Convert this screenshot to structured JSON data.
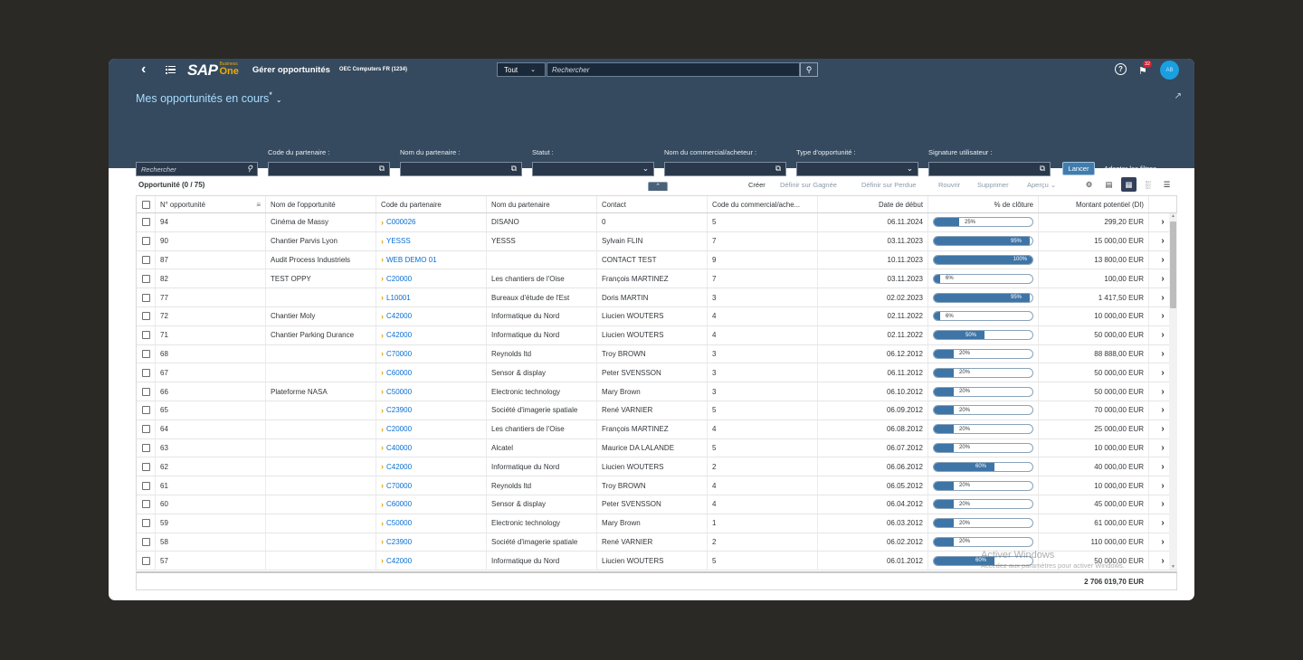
{
  "shell": {
    "back_icon": "chevron-left-icon",
    "logo_sap": "SAP",
    "logo_business": "Business",
    "logo_one": "One",
    "app_title": "Gérer opportunités",
    "company": "OEC Computers FR (1234)",
    "search_scope": "Tout",
    "search_placeholder": "Rechercher",
    "help_glyph": "?",
    "notification_count": "32",
    "avatar_initials": "AB"
  },
  "header": {
    "variant_title": "Mes opportunités en cours",
    "variant_modified": "*",
    "search_placeholder": "Rechercher",
    "filters": [
      {
        "label": "Code du partenaire :"
      },
      {
        "label": "Nom du partenaire :"
      },
      {
        "label": "Statut :"
      },
      {
        "label": "Nom du commercial/acheteur :"
      },
      {
        "label": "Type d'opportunité :"
      },
      {
        "label": "Signature utilisateur :"
      }
    ],
    "go_label": "Lancer",
    "adapt_label": "Adapter les filtres"
  },
  "toolbar": {
    "title": "Opportunité (0 / 75)",
    "create": "Créer",
    "set_won": "Définir sur Gagnée",
    "set_lost": "Définir sur Perdue",
    "reopen": "Rouvrir",
    "delete": "Supprimer",
    "preview": "Aperçu"
  },
  "columns": [
    "N° opportunité",
    "Nom de l'opportunité",
    "Code du partenaire",
    "Nom du partenaire",
    "Contact",
    "Code du commercial/ache...",
    "Date de début",
    "% de clôture",
    "Montant potentiel (DI)"
  ],
  "rows": [
    {
      "num": "94",
      "name": "Cinéma de Massy",
      "code": "C000026",
      "partner": "DISANO",
      "contact": "0",
      "sales": "5",
      "date": "06.11.2024",
      "pct": 25,
      "pct_label": "25%",
      "amount": "299,20 EUR"
    },
    {
      "num": "90",
      "name": "Chantier Parvis Lyon",
      "code": "YESSS",
      "partner": "YESSS",
      "contact": "Sylvain FLIN",
      "sales": "7",
      "date": "03.11.2023",
      "pct": 95,
      "pct_label": "95%",
      "amount": "15 000,00 EUR"
    },
    {
      "num": "87",
      "name": "Audit Process Industriels",
      "code": "WEB DEMO 01",
      "partner": "",
      "contact": "CONTACT TEST",
      "sales": "9",
      "date": "10.11.2023",
      "pct": 100,
      "pct_label": "100%",
      "amount": "13 800,00 EUR"
    },
    {
      "num": "82",
      "name": "TEST OPPY",
      "code": "C20000",
      "partner": "Les chantiers de l'Oise",
      "contact": "François MARTINEZ",
      "sales": "7",
      "date": "03.11.2023",
      "pct": 6,
      "pct_label": "6%",
      "amount": "100,00 EUR"
    },
    {
      "num": "77",
      "name": "",
      "code": "L10001",
      "partner": "Bureaux d'étude de l'Est",
      "contact": "Doris MARTIN",
      "sales": "3",
      "date": "02.02.2023",
      "pct": 95,
      "pct_label": "95%",
      "amount": "1 417,50 EUR"
    },
    {
      "num": "72",
      "name": "Chantier Moly",
      "code": "C42000",
      "partner": "Informatique du Nord",
      "contact": "Liucien WOUTERS",
      "sales": "4",
      "date": "02.11.2022",
      "pct": 6,
      "pct_label": "6%",
      "amount": "10 000,00 EUR"
    },
    {
      "num": "71",
      "name": "Chantier Parking Durance",
      "code": "C42000",
      "partner": "Informatique du Nord",
      "contact": "Liucien WOUTERS",
      "sales": "4",
      "date": "02.11.2022",
      "pct": 50,
      "pct_label": "50%",
      "amount": "50 000,00 EUR"
    },
    {
      "num": "68",
      "name": "",
      "code": "C70000",
      "partner": "Reynolds ltd",
      "contact": "Troy BROWN",
      "sales": "3",
      "date": "06.12.2012",
      "pct": 20,
      "pct_label": "20%",
      "amount": "88 888,00 EUR"
    },
    {
      "num": "67",
      "name": "",
      "code": "C60000",
      "partner": "Sensor & display",
      "contact": "Peter SVENSSON",
      "sales": "3",
      "date": "06.11.2012",
      "pct": 20,
      "pct_label": "20%",
      "amount": "50 000,00 EUR"
    },
    {
      "num": "66",
      "name": "Plateforme NASA",
      "code": "C50000",
      "partner": "Electronic technology",
      "contact": "Mary Brown",
      "sales": "3",
      "date": "06.10.2012",
      "pct": 20,
      "pct_label": "20%",
      "amount": "50 000,00 EUR"
    },
    {
      "num": "65",
      "name": "",
      "code": "C23900",
      "partner": "Société d'imagerie spatiale",
      "contact": "René VARNIER",
      "sales": "5",
      "date": "06.09.2012",
      "pct": 20,
      "pct_label": "20%",
      "amount": "70 000,00 EUR"
    },
    {
      "num": "64",
      "name": "",
      "code": "C20000",
      "partner": "Les chantiers de l'Oise",
      "contact": "François MARTINEZ",
      "sales": "4",
      "date": "06.08.2012",
      "pct": 20,
      "pct_label": "20%",
      "amount": "25 000,00 EUR"
    },
    {
      "num": "63",
      "name": "",
      "code": "C40000",
      "partner": "Alcatel",
      "contact": "Maurice DA LALANDE",
      "sales": "5",
      "date": "06.07.2012",
      "pct": 20,
      "pct_label": "20%",
      "amount": "10 000,00 EUR"
    },
    {
      "num": "62",
      "name": "",
      "code": "C42000",
      "partner": "Informatique du Nord",
      "contact": "Liucien WOUTERS",
      "sales": "2",
      "date": "06.06.2012",
      "pct": 60,
      "pct_label": "60%",
      "amount": "40 000,00 EUR"
    },
    {
      "num": "61",
      "name": "",
      "code": "C70000",
      "partner": "Reynolds ltd",
      "contact": "Troy BROWN",
      "sales": "4",
      "date": "06.05.2012",
      "pct": 20,
      "pct_label": "20%",
      "amount": "10 000,00 EUR"
    },
    {
      "num": "60",
      "name": "",
      "code": "C60000",
      "partner": "Sensor & display",
      "contact": "Peter SVENSSON",
      "sales": "4",
      "date": "06.04.2012",
      "pct": 20,
      "pct_label": "20%",
      "amount": "45 000,00 EUR"
    },
    {
      "num": "59",
      "name": "",
      "code": "C50000",
      "partner": "Electronic technology",
      "contact": "Mary Brown",
      "sales": "1",
      "date": "06.03.2012",
      "pct": 20,
      "pct_label": "20%",
      "amount": "61 000,00 EUR"
    },
    {
      "num": "58",
      "name": "",
      "code": "C23900",
      "partner": "Société d'imagerie spatiale",
      "contact": "René VARNIER",
      "sales": "2",
      "date": "06.02.2012",
      "pct": 20,
      "pct_label": "20%",
      "amount": "110 000,00 EUR"
    },
    {
      "num": "57",
      "name": "",
      "code": "C42000",
      "partner": "Informatique du Nord",
      "contact": "Liucien WOUTERS",
      "sales": "5",
      "date": "06.01.2012",
      "pct": 60,
      "pct_label": "60%",
      "amount": "50 000,00 EUR"
    }
  ],
  "total": "2 706 019,70 EUR",
  "watermark": {
    "line1": "Activer Windows",
    "line2": "Accédez aux paramètres pour activer Windows."
  },
  "colors": {
    "shell": "#354a5f",
    "accent": "#0a6ed1",
    "bar": "#3e74a6",
    "arrow": "#e7a100"
  }
}
